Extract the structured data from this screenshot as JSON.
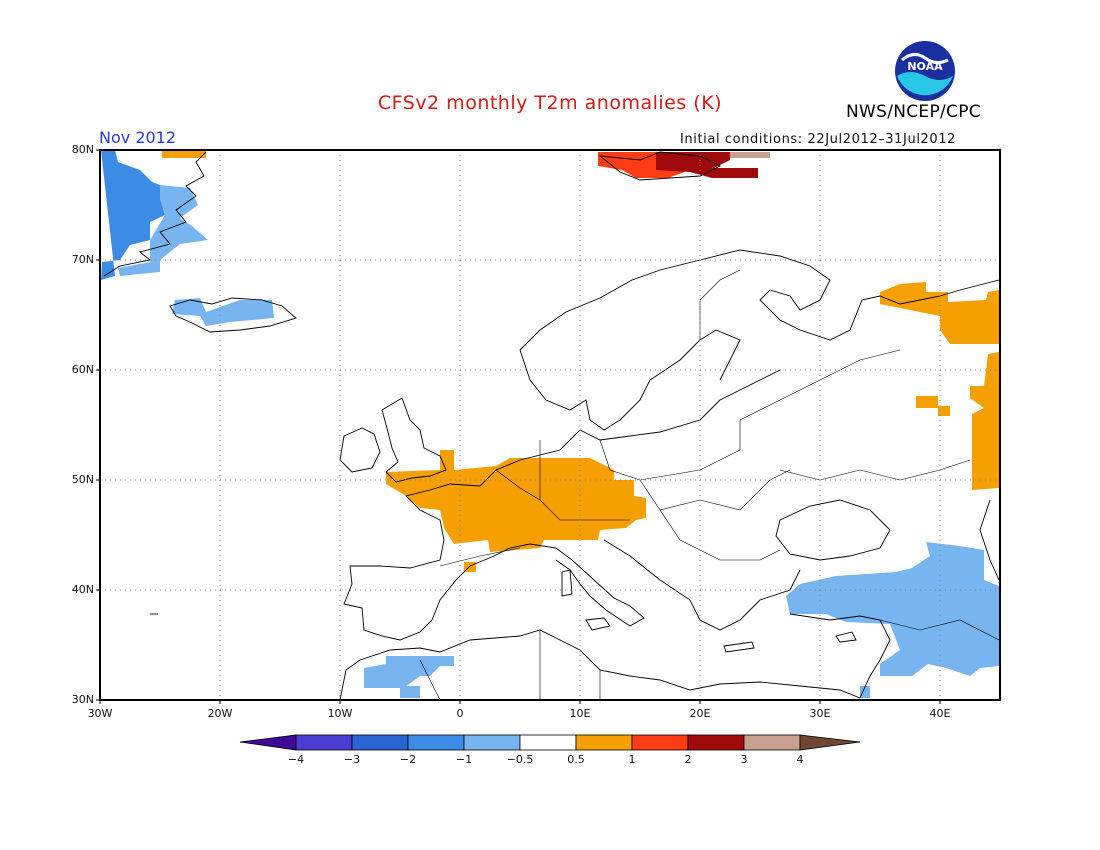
{
  "header": {
    "title": "CFSv2 monthly T2m anomalies (K)",
    "month": "Nov 2012",
    "initial_conditions": "Initial conditions: 22Jul2012–31Jul2012",
    "agency": "NWS/NCEP/CPC",
    "logo_text": "NOAA"
  },
  "map": {
    "lat_labels": [
      "80N",
      "70N",
      "60N",
      "50N",
      "40N",
      "30N"
    ],
    "lon_labels": [
      "30W",
      "20W",
      "10W",
      "0",
      "10E",
      "20E",
      "30E",
      "40E"
    ],
    "colors": {
      "warm_05_1": "#f5a000",
      "warm_1_2": "#ff3c14",
      "warm_2_3": "#a00a0a",
      "warm_3_4": "#c8a090",
      "cool_m1_m05": "#78b4f0",
      "cool_m2_m1": "#3c8ce6",
      "frame": "#000000",
      "grid": "#888888"
    }
  },
  "colorbar": {
    "labels": [
      "−4",
      "−3",
      "−2",
      "−1",
      "−0.5",
      "0.5",
      "1",
      "2",
      "3",
      "4"
    ],
    "colors": [
      "#3c0a96",
      "#4b3cd2",
      "#2864d2",
      "#3c8ce6",
      "#78b4f0",
      "#ffffff",
      "#f5a000",
      "#ff3c14",
      "#a00a0a",
      "#c8a090",
      "#6e4632"
    ]
  }
}
